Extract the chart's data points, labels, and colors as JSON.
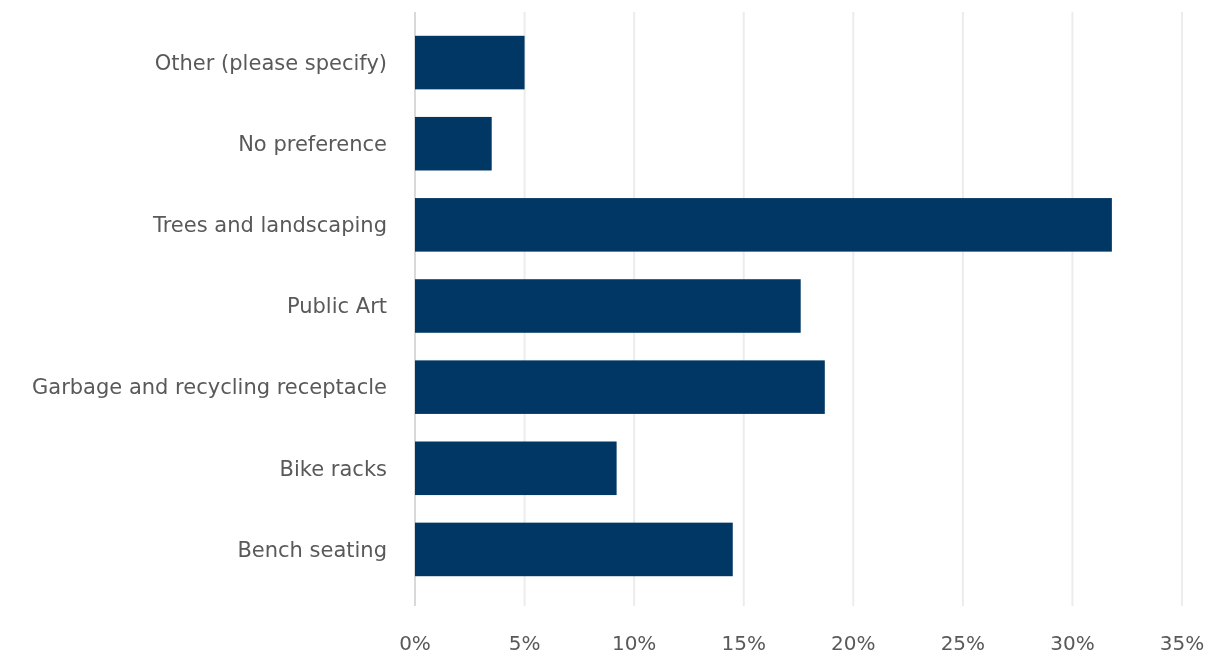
{
  "chart_data": {
    "type": "bar",
    "orientation": "horizontal",
    "categories": [
      "Other (please specify)",
      "No preference",
      "Trees and landscaping",
      "Public Art",
      "Garbage and recycling receptacle",
      "Bike racks",
      "Bench seating"
    ],
    "values": [
      5.0,
      3.5,
      31.8,
      17.6,
      18.7,
      9.2,
      14.5
    ],
    "color": "#003764",
    "xlim": [
      0,
      35
    ],
    "xticks": [
      {
        "value": 0,
        "label": "0%"
      },
      {
        "value": 5,
        "label": "5%"
      },
      {
        "value": 10,
        "label": "10%"
      },
      {
        "value": 15,
        "label": "15%"
      },
      {
        "value": 20,
        "label": "20%"
      },
      {
        "value": 25,
        "label": "25%"
      },
      {
        "value": 30,
        "label": "30%"
      },
      {
        "value": 35,
        "label": "35%"
      }
    ],
    "grid": "x"
  }
}
